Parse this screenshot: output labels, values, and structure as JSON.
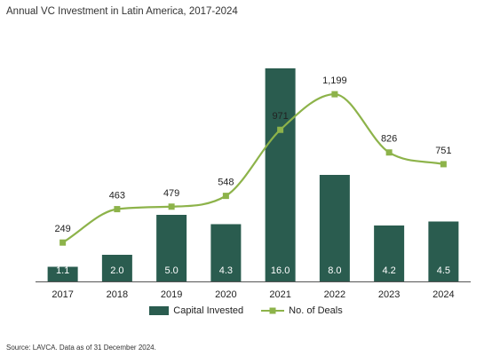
{
  "chart_data": {
    "type": "bar",
    "title": "Annual VC Investment in Latin America, 2017-2024",
    "categories": [
      "2017",
      "2018",
      "2019",
      "2020",
      "2021",
      "2022",
      "2023",
      "2024"
    ],
    "series": [
      {
        "name": "Capital Invested",
        "type": "bar",
        "values": [
          1.1,
          2.0,
          5.0,
          4.3,
          16.0,
          8.0,
          4.2,
          4.5
        ],
        "value_labels": [
          "1.1",
          "2.0",
          "5.0",
          "4.3",
          "16.0",
          "8.0",
          "4.2",
          "4.5"
        ],
        "color": "#2a5c4f",
        "ylim": [
          0,
          17
        ]
      },
      {
        "name": "No. of Deals",
        "type": "line",
        "values": [
          249,
          463,
          479,
          548,
          971,
          1199,
          826,
          751
        ],
        "value_labels": [
          "249",
          "463",
          "479",
          "548",
          "971",
          "1,199",
          "826",
          "751"
        ],
        "color": "#8db34a",
        "ylim": [
          0,
          1450
        ]
      }
    ],
    "legend_position": "bottom-center",
    "grid": false
  },
  "source_note": "Source: LAVCA. Data as of 31 December 2024."
}
